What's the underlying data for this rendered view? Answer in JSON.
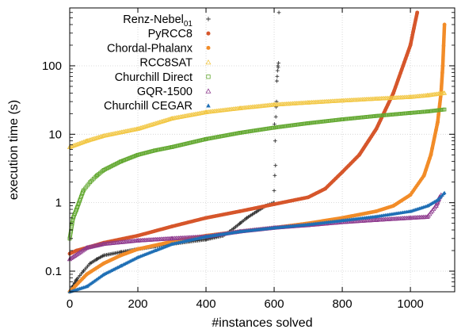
{
  "chart_data": {
    "type": "scatter",
    "xlabel": "#instances solved",
    "ylabel": "execution time (s)",
    "xlim": [
      0,
      1130
    ],
    "ylim": [
      0.05,
      700
    ],
    "yscale": "log",
    "xticks": [
      0,
      200,
      400,
      600,
      800,
      1000
    ],
    "yticks": [
      0.1,
      1,
      10,
      100
    ],
    "ytick_labels": [
      "0.1",
      "1",
      "10",
      "100"
    ],
    "grid": true,
    "legend_position": "top-left",
    "series": [
      {
        "name": "Renz-Nebel",
        "name_sub": "01",
        "marker": "plus",
        "color": "#333333",
        "points": [
          [
            0,
            0.05
          ],
          [
            10,
            0.06
          ],
          [
            20,
            0.075
          ],
          [
            40,
            0.1
          ],
          [
            60,
            0.13
          ],
          [
            80,
            0.15
          ],
          [
            100,
            0.17
          ],
          [
            150,
            0.19
          ],
          [
            200,
            0.21
          ],
          [
            250,
            0.23
          ],
          [
            300,
            0.25
          ],
          [
            350,
            0.27
          ],
          [
            400,
            0.29
          ],
          [
            450,
            0.33
          ],
          [
            470,
            0.38
          ],
          [
            500,
            0.5
          ],
          [
            520,
            0.6
          ],
          [
            550,
            0.75
          ],
          [
            575,
            0.9
          ],
          [
            600,
            1.0
          ]
        ],
        "outliers": [
          [
            600,
            1.5
          ],
          [
            602,
            2.5
          ],
          [
            604,
            3.5
          ],
          [
            603,
            8
          ],
          [
            601,
            14
          ],
          [
            605,
            18
          ],
          [
            606,
            25
          ],
          [
            607,
            30
          ],
          [
            608,
            60
          ],
          [
            609,
            70
          ],
          [
            610,
            85
          ],
          [
            612,
            95
          ],
          [
            611,
            100
          ],
          [
            613,
            110
          ],
          [
            614,
            600
          ]
        ]
      },
      {
        "name": "PyRCC8",
        "marker": "circle",
        "color": "#d6562b",
        "points": [
          [
            0,
            0.18
          ],
          [
            20,
            0.2
          ],
          [
            50,
            0.22
          ],
          [
            100,
            0.26
          ],
          [
            200,
            0.33
          ],
          [
            300,
            0.45
          ],
          [
            400,
            0.6
          ],
          [
            500,
            0.75
          ],
          [
            600,
            0.95
          ],
          [
            700,
            1.2
          ],
          [
            750,
            1.6
          ],
          [
            800,
            2.8
          ],
          [
            850,
            5.0
          ],
          [
            900,
            12
          ],
          [
            950,
            40
          ],
          [
            1000,
            200
          ],
          [
            1010,
            350
          ],
          [
            1020,
            600
          ]
        ]
      },
      {
        "name": "Chordal-Phalanx",
        "marker": "circle",
        "color": "#f28c28",
        "points": [
          [
            0,
            0.05
          ],
          [
            50,
            0.09
          ],
          [
            100,
            0.13
          ],
          [
            150,
            0.17
          ],
          [
            200,
            0.21
          ],
          [
            300,
            0.27
          ],
          [
            400,
            0.33
          ],
          [
            500,
            0.38
          ],
          [
            600,
            0.43
          ],
          [
            700,
            0.5
          ],
          [
            800,
            0.6
          ],
          [
            900,
            0.75
          ],
          [
            950,
            0.9
          ],
          [
            1000,
            1.3
          ],
          [
            1040,
            2.5
          ],
          [
            1060,
            5.0
          ],
          [
            1080,
            15
          ],
          [
            1090,
            40
          ],
          [
            1095,
            100
          ],
          [
            1100,
            400
          ]
        ]
      },
      {
        "name": "RCC8SAT",
        "marker": "triangle-open",
        "color": "#f2c744",
        "points": [
          [
            0,
            6.5
          ],
          [
            50,
            8.0
          ],
          [
            100,
            9.5
          ],
          [
            200,
            12
          ],
          [
            300,
            17
          ],
          [
            400,
            21
          ],
          [
            500,
            24
          ],
          [
            600,
            27
          ],
          [
            700,
            29
          ],
          [
            800,
            31
          ],
          [
            900,
            33
          ],
          [
            1000,
            35
          ],
          [
            1050,
            37
          ],
          [
            1100,
            40
          ]
        ]
      },
      {
        "name": "Churchill Direct",
        "marker": "square-open",
        "color": "#62a830",
        "points": [
          [
            0,
            0.3
          ],
          [
            10,
            0.6
          ],
          [
            20,
            0.8
          ],
          [
            40,
            1.5
          ],
          [
            60,
            2.0
          ],
          [
            80,
            2.5
          ],
          [
            100,
            3.0
          ],
          [
            150,
            4.0
          ],
          [
            200,
            5.0
          ],
          [
            250,
            5.8
          ],
          [
            300,
            6.5
          ],
          [
            400,
            8.5
          ],
          [
            500,
            10.5
          ],
          [
            600,
            12.5
          ],
          [
            700,
            14.5
          ],
          [
            800,
            16.5
          ],
          [
            900,
            18.5
          ],
          [
            1000,
            20.5
          ],
          [
            1050,
            21.5
          ],
          [
            1100,
            23
          ]
        ]
      },
      {
        "name": "GQR-1500",
        "marker": "triangle-open",
        "color": "#8e3a8e",
        "points": [
          [
            0,
            0.15
          ],
          [
            50,
            0.22
          ],
          [
            100,
            0.25
          ],
          [
            200,
            0.28
          ],
          [
            300,
            0.3
          ],
          [
            400,
            0.32
          ],
          [
            500,
            0.38
          ],
          [
            600,
            0.43
          ],
          [
            700,
            0.47
          ],
          [
            800,
            0.52
          ],
          [
            900,
            0.56
          ],
          [
            1000,
            0.6
          ],
          [
            1050,
            0.62
          ],
          [
            1075,
            0.9
          ],
          [
            1085,
            1.2
          ],
          [
            1090,
            1.3
          ]
        ]
      },
      {
        "name": "Churchill CEGAR",
        "marker": "triangle",
        "color": "#1f6fb5",
        "points": [
          [
            0,
            0.05
          ],
          [
            50,
            0.06
          ],
          [
            100,
            0.09
          ],
          [
            150,
            0.12
          ],
          [
            200,
            0.16
          ],
          [
            250,
            0.2
          ],
          [
            300,
            0.25
          ],
          [
            400,
            0.32
          ],
          [
            500,
            0.38
          ],
          [
            600,
            0.43
          ],
          [
            700,
            0.48
          ],
          [
            800,
            0.55
          ],
          [
            900,
            0.63
          ],
          [
            1000,
            0.75
          ],
          [
            1050,
            0.9
          ],
          [
            1080,
            1.1
          ],
          [
            1100,
            1.4
          ]
        ]
      }
    ]
  }
}
